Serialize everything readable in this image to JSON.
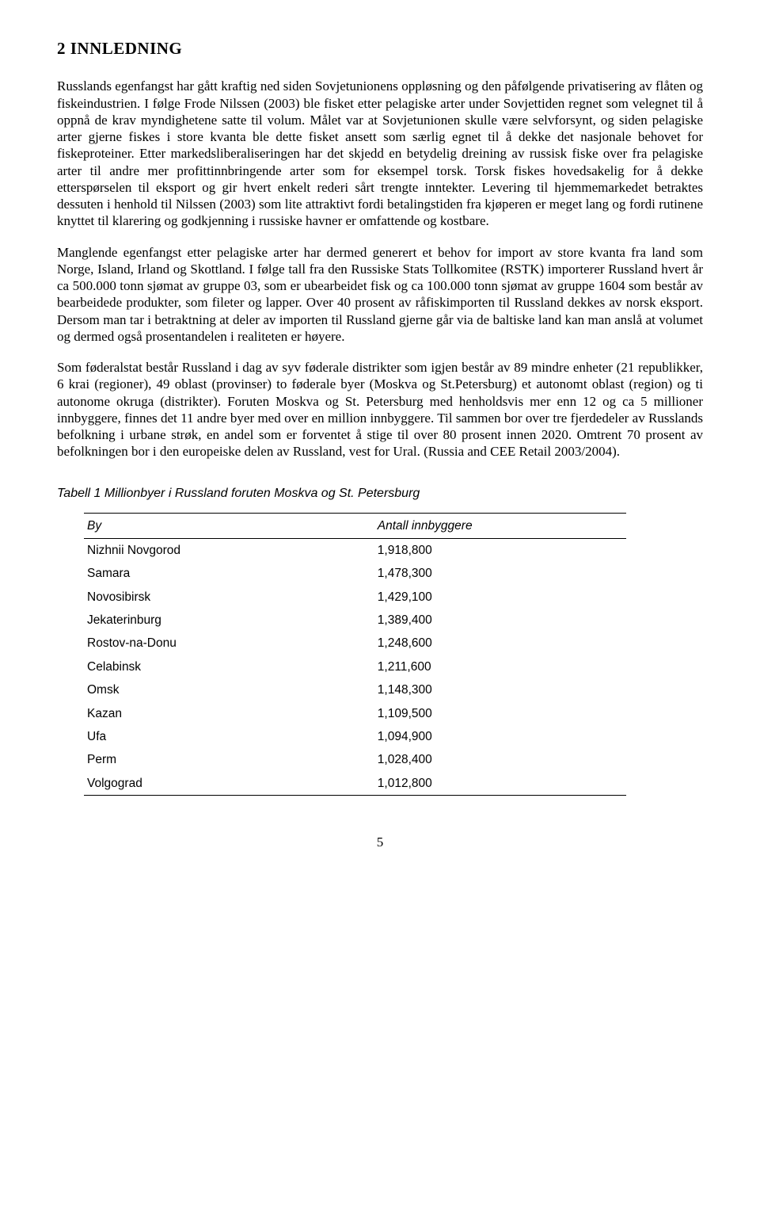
{
  "heading": "2   INNLEDNING",
  "paragraphs": [
    "Russlands egenfangst har gått kraftig ned siden Sovjetunionens oppløsning og den påfølgende privatisering av flåten og fiskeindustrien. I følge Frode Nilssen (2003) ble fisket etter pelagiske arter under Sovjettiden regnet som velegnet til å oppnå de krav myndighetene satte til volum. Målet var at Sovjetunionen skulle være selvforsynt, og siden pelagiske arter gjerne fiskes i store kvanta ble dette fisket ansett som særlig egnet til å dekke det nasjonale behovet for fiskeproteiner. Etter markedsliberaliseringen har det skjedd en betydelig dreining av russisk fiske over fra pelagiske arter til andre mer profittinnbringende arter som for eksempel torsk. Torsk fiskes hovedsakelig for å dekke etterspørselen til eksport og gir hvert enkelt rederi sårt trengte inntekter. Levering til hjemmemarkedet betraktes dessuten i henhold til Nilssen (2003) som lite attraktivt fordi betalingstiden fra kjøperen er meget lang og fordi rutinene knyttet til klarering og godkjenning i russiske havner er omfattende og kostbare.",
    "Manglende egenfangst etter pelagiske arter har dermed generert et behov for import av store kvanta fra land som Norge, Island, Irland og Skottland. I følge tall fra den Russiske Stats Tollkomitee (RSTK) importerer Russland hvert år ca 500.000 tonn sjømat av gruppe 03, som er ubearbeidet fisk og ca 100.000 tonn sjømat av gruppe 1604 som består av bearbeidede produkter, som fileter og lapper. Over 40 prosent av råfiskimporten til Russland dekkes av norsk eksport. Dersom man tar i betraktning at deler av importen til Russland gjerne går via de baltiske land kan man anslå at volumet og dermed også prosentandelen i realiteten er høyere.",
    "Som føderalstat består Russland i dag av syv føderale distrikter som igjen består av 89 mindre enheter (21 republikker, 6 krai (regioner), 49 oblast (provinser) to føderale byer (Moskva og St.Petersburg) et autonomt oblast (region) og ti autonome okruga (distrikter). Foruten Moskva og St. Petersburg med henholdsvis mer enn 12 og ca 5 millioner innbyggere, finnes det 11 andre byer med over en million innbyggere. Til sammen bor over tre fjerdedeler av Russlands befolkning i urbane strøk, en andel som er forventet å stige til over 80 prosent innen 2020. Omtrent 70 prosent av befolkningen bor i den europeiske delen av Russland, vest for Ural. (Russia and CEE Retail 2003/2004)."
  ],
  "table": {
    "caption": "Tabell 1  Millionbyer i Russland foruten Moskva og St. Petersburg",
    "columns": [
      "By",
      "Antall innbyggere"
    ],
    "rows": [
      [
        "Nizhnii Novgorod",
        "1,918,800"
      ],
      [
        "Samara",
        "1,478,300"
      ],
      [
        "Novosibirsk",
        "1,429,100"
      ],
      [
        "Jekaterinburg",
        "1,389,400"
      ],
      [
        "Rostov-na-Donu",
        "1,248,600"
      ],
      [
        "Celabinsk",
        "1,211,600"
      ],
      [
        "Omsk",
        "1,148,300"
      ],
      [
        "Kazan",
        "1,109,500"
      ],
      [
        "Ufa",
        "1,094,900"
      ],
      [
        "Perm",
        "1,028,400"
      ],
      [
        "Volgograd",
        "1,012,800"
      ]
    ]
  },
  "page_number": "5"
}
